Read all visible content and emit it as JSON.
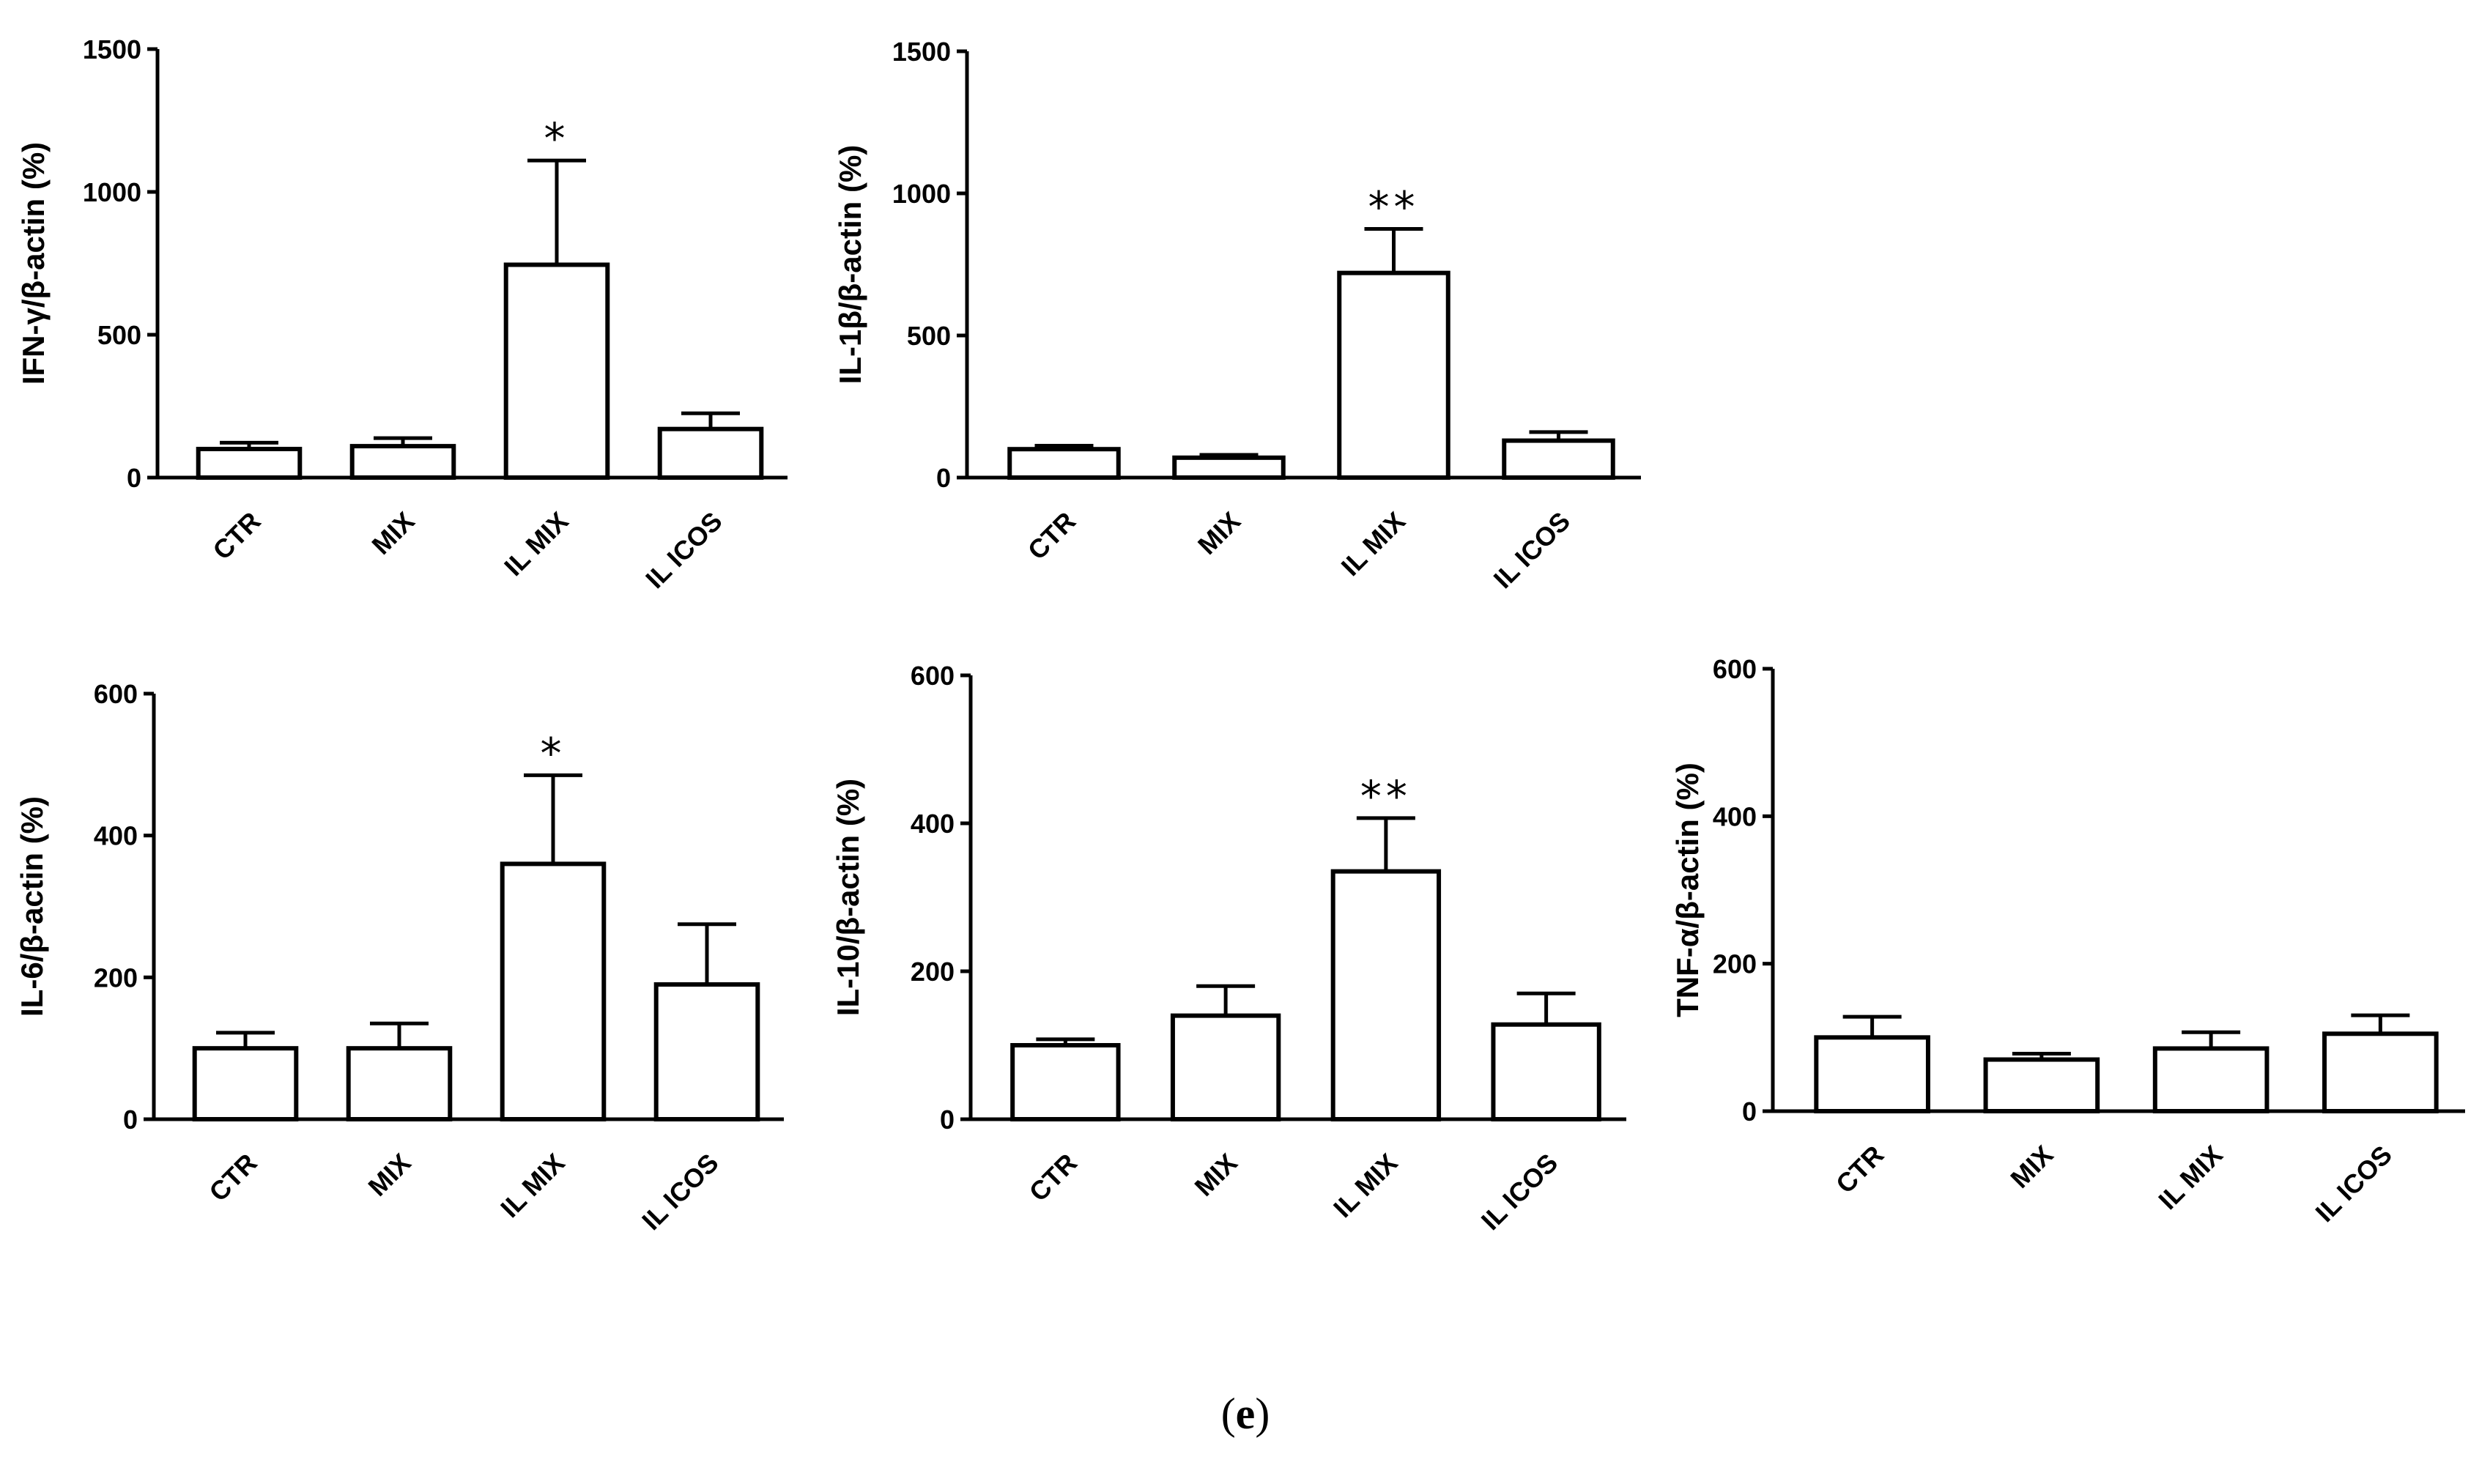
{
  "chart_data": [
    {
      "type": "bar",
      "ylabel": "IFN-γ/β-actin (%)",
      "categories": [
        "CTR",
        "MIX",
        "IL MIX",
        "IL ICOS"
      ],
      "values": [
        100,
        110,
        745,
        170
      ],
      "errors": [
        22,
        28,
        365,
        55
      ],
      "significance": [
        "",
        "",
        "*",
        ""
      ],
      "ylim": [
        0,
        1500
      ],
      "yticks": [
        "0",
        "500",
        "1000",
        "1500"
      ]
    },
    {
      "type": "bar",
      "ylabel": "IL-1β/β-actin (%)",
      "categories": [
        "CTR",
        "MIX",
        "IL MIX",
        "IL ICOS"
      ],
      "values": [
        100,
        70,
        720,
        130
      ],
      "errors": [
        12,
        10,
        155,
        30
      ],
      "significance": [
        "",
        "",
        "**",
        ""
      ],
      "ylim": [
        0,
        1500
      ],
      "yticks": [
        "0",
        "500",
        "1000",
        "1500"
      ]
    },
    {
      "type": "bar",
      "ylabel": "IL-6/β-actin (%)",
      "categories": [
        "CTR",
        "MIX",
        "IL MIX",
        "IL ICOS"
      ],
      "values": [
        100,
        100,
        360,
        190
      ],
      "errors": [
        22,
        35,
        125,
        85
      ],
      "significance": [
        "",
        "",
        "*",
        ""
      ],
      "ylim": [
        0,
        600
      ],
      "yticks": [
        "0",
        "200",
        "400",
        "600"
      ]
    },
    {
      "type": "bar",
      "ylabel": "IL-10/β-actin (%)",
      "categories": [
        "CTR",
        "MIX",
        "IL MIX",
        "IL ICOS"
      ],
      "values": [
        100,
        140,
        335,
        128
      ],
      "errors": [
        8,
        40,
        72,
        42
      ],
      "significance": [
        "",
        "",
        "**",
        ""
      ],
      "ylim": [
        0,
        600
      ],
      "yticks": [
        "0",
        "200",
        "400",
        "600"
      ]
    },
    {
      "type": "bar",
      "ylabel": "TNF-α/β-actin (%)",
      "categories": [
        "CTR",
        "MIX",
        "IL MIX",
        "IL ICOS"
      ],
      "values": [
        100,
        70,
        85,
        105
      ],
      "errors": [
        28,
        8,
        22,
        25
      ],
      "significance": [
        "",
        "",
        "",
        ""
      ],
      "ylim": [
        0,
        600
      ],
      "yticks": [
        "0",
        "200",
        "400",
        "600"
      ]
    }
  ],
  "caption": {
    "open": "(",
    "letter": "e",
    "close": ")"
  }
}
